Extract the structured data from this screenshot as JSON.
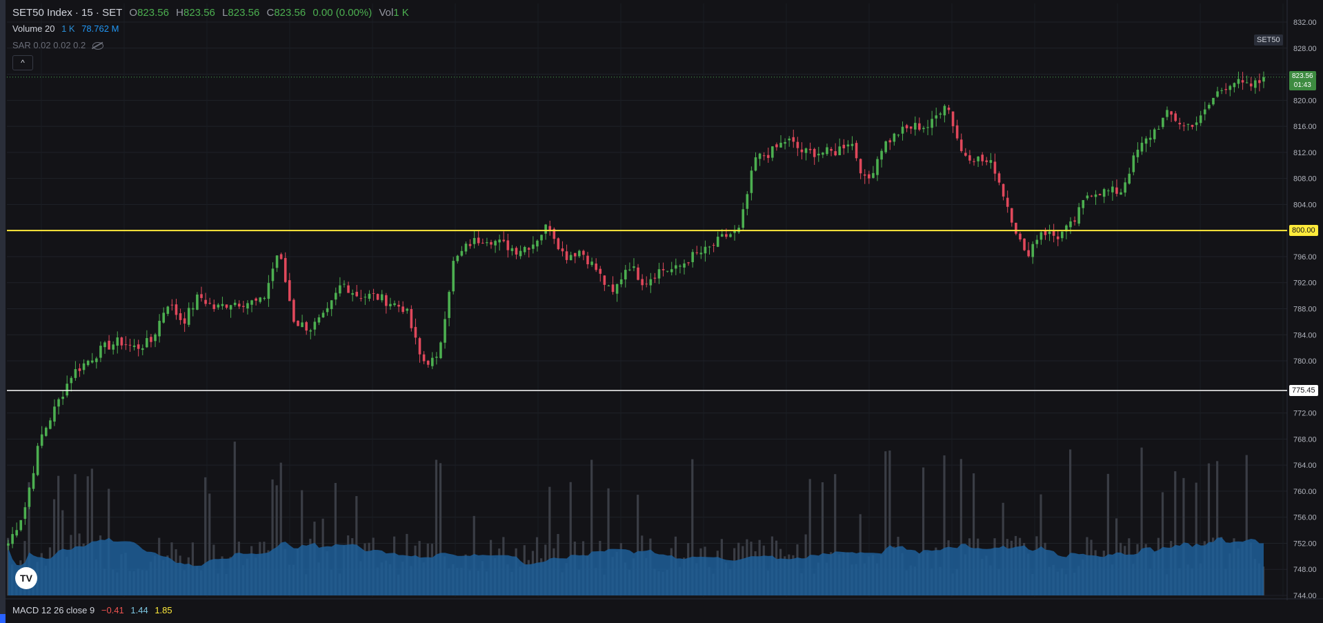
{
  "header": {
    "symbol": "SET50 Index · 15 · SET",
    "o_label": "O",
    "o_value": "823.56",
    "h_label": "H",
    "h_value": "823.56",
    "l_label": "L",
    "l_value": "823.56",
    "c_label": "C",
    "c_value": "823.56",
    "change": "0.00 (0.00%)",
    "vol_label": "Vol",
    "vol_value": "1 K"
  },
  "volume_legend": {
    "label": "Volume 20",
    "v1": "1 K",
    "v2": "78.762 M"
  },
  "sar_legend": {
    "label": "SAR 0.02 0.02 0.2"
  },
  "collapse_label": "^",
  "symbol_tag": "SET50",
  "price_tag": {
    "price": "823.56",
    "countdown": "01:43"
  },
  "level_tags": {
    "yellow": "800.00",
    "white": "775.45"
  },
  "macd_legend": {
    "label": "MACD 12 26 close 9",
    "v1": "−0.41",
    "v2": "1.44",
    "v3": "1.85"
  },
  "logo": "TV",
  "colors": {
    "up": "#4caf50",
    "down": "#e0485b",
    "bg": "#131317",
    "volume_avg": "#1f5f99",
    "level_yellow": "#ffeb3b",
    "level_white": "#ffffff"
  },
  "chart_data": {
    "type": "candlestick",
    "ylim": [
      744,
      834
    ],
    "y_ticks": [
      "832.00",
      "828.00",
      "824.00",
      "820.00",
      "816.00",
      "812.00",
      "808.00",
      "804.00",
      "800.00",
      "796.00",
      "792.00",
      "788.00",
      "784.00",
      "780.00",
      "775.45",
      "772.00",
      "768.00",
      "764.00",
      "760.00",
      "756.00",
      "752.00",
      "748.00",
      "744.00"
    ],
    "horizontal_levels": [
      800.0,
      775.45
    ],
    "last_price": 823.56,
    "anchor_closes": [
      752,
      757,
      768,
      773,
      778,
      780,
      782,
      783,
      782,
      783,
      789,
      786,
      790,
      788,
      789,
      789,
      789,
      797,
      786,
      785,
      787,
      792,
      790,
      790,
      789,
      788,
      780,
      780,
      795,
      798,
      799,
      798,
      797,
      798,
      801,
      796,
      797,
      794,
      790,
      795,
      792,
      794,
      794,
      796,
      797,
      799,
      800,
      811,
      812,
      814,
      812,
      812,
      812,
      814,
      807,
      813,
      815,
      816,
      816,
      820,
      812,
      811,
      810,
      803,
      796,
      800,
      799,
      801,
      806,
      806,
      806,
      812,
      815,
      818,
      816,
      817,
      821,
      823,
      822,
      823
    ],
    "volume_note": "volume bars with 20-period average area"
  }
}
